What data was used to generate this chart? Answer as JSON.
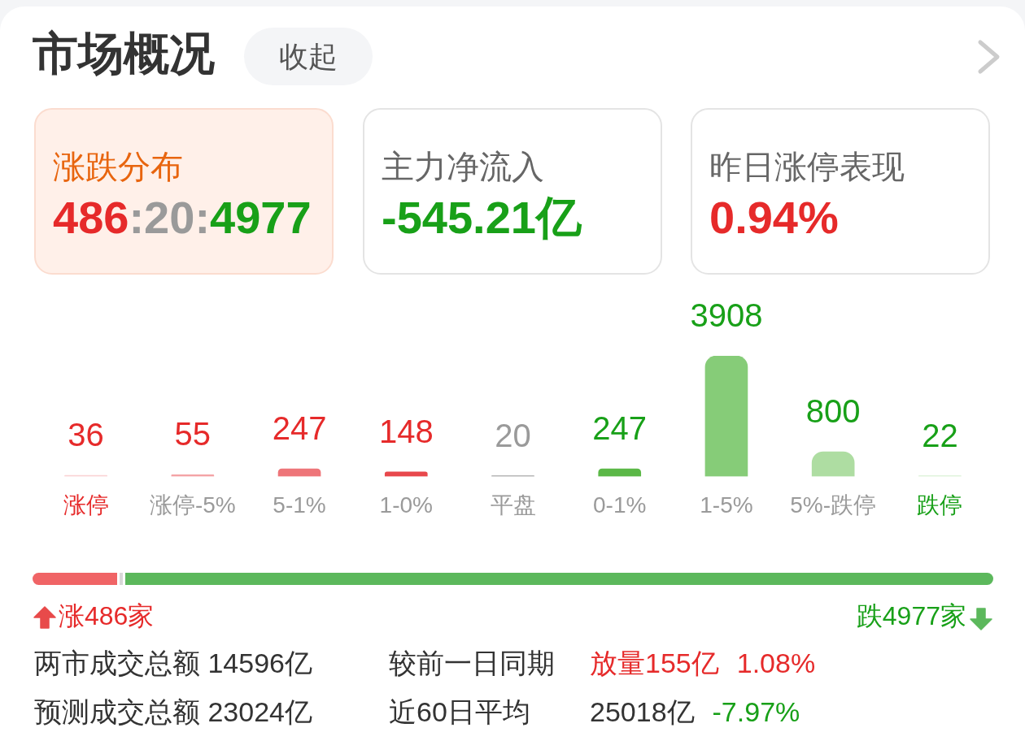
{
  "chart_data": [
    {
      "type": "other",
      "title": "市场概况",
      "annotations": [
        "收起",
        "涨跌分布",
        "486:20:4977",
        "主力净流入",
        "-545.21亿",
        "昨日涨停表现",
        "0.94%"
      ]
    },
    {
      "type": "bar",
      "categories": [
        "涨停",
        "涨停-5%",
        "5-1%",
        "1-0%",
        "平盘",
        "0-1%",
        "1-5%",
        "5%-跌停",
        "跌停"
      ],
      "values": [
        36,
        55,
        247,
        148,
        20,
        247,
        3908,
        800,
        22
      ],
      "colors": [
        "#fad2d4",
        "#f4a3a6",
        "#ee7579",
        "#e8484c",
        "#9e9e9e",
        "#5bb847",
        "#86cc78",
        "#aedda2",
        "#d6efd0"
      ],
      "data_labels": true
    },
    {
      "type": "other",
      "annotations": [
        "涨486家",
        "跌4977家",
        "两市成交总额 14596亿",
        "较前一日同期",
        "放量155亿",
        "1.08%",
        "预测成交总额 23024亿",
        "近60日平均",
        "25018亿",
        "-7.97%"
      ]
    }
  ]
}
